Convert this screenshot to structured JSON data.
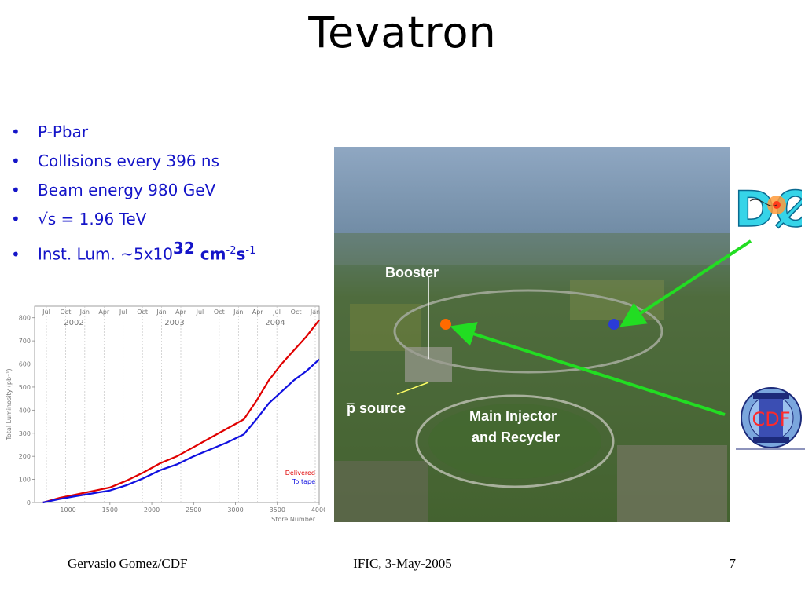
{
  "title": "Tevatron",
  "bullets": [
    {
      "text": "P-Pbar"
    },
    {
      "text": "Collisions every 396 ns"
    },
    {
      "text": "Beam energy 980 GeV"
    },
    {
      "text": "√s = 1.96 TeV"
    },
    {
      "prefix": "Inst. Lum. ~5x10",
      "exp1": "32",
      "mid": " cm",
      "exp2": "-2",
      "s": "s",
      "exp3": "-1"
    }
  ],
  "bullet_marker": "•",
  "photo_labels": {
    "booster": "Booster",
    "pbar_source": "p source",
    "pbar_bar": "_",
    "main_injector_line1": "Main Injector",
    "main_injector_line2": "and Recycler"
  },
  "logos": {
    "d0": "DØ",
    "cdf": "CDF"
  },
  "footer": {
    "left": "Gervasio Gomez/CDF",
    "center": "IFIC, 3-May-2005",
    "right": "7"
  },
  "colors": {
    "bullet_text": "#1414c8",
    "delivered": "#e00000",
    "to_tape": "#1010e0",
    "arrow": "#22dd22"
  },
  "chart_data": {
    "type": "line",
    "ylabel": "Total Luminosity (pb⁻¹)",
    "xlabel": "Store Number",
    "xlim": [
      600,
      4000
    ],
    "ylim": [
      0,
      850
    ],
    "x_ticks": [
      1000,
      1500,
      2000,
      2500,
      3000,
      3500,
      4000
    ],
    "y_ticks": [
      0,
      100,
      200,
      300,
      400,
      500,
      600,
      700,
      800
    ],
    "top_month_labels": [
      "Jul",
      "Oct",
      "Jan",
      "Apr",
      "Jul",
      "Oct",
      "Jan",
      "Apr",
      "Jul",
      "Oct",
      "Jan",
      "Apr",
      "Jul",
      "Oct",
      "Jan"
    ],
    "year_labels": [
      "2002",
      "2003",
      "2004"
    ],
    "legend": [
      "Delivered",
      "To tape"
    ],
    "series": [
      {
        "name": "Delivered",
        "x": [
          700,
          900,
          1100,
          1300,
          1500,
          1700,
          1900,
          2100,
          2300,
          2500,
          2700,
          2900,
          3100,
          3250,
          3400,
          3550,
          3700,
          3850,
          4000
        ],
        "values": [
          0,
          20,
          35,
          50,
          65,
          95,
          130,
          170,
          200,
          240,
          280,
          320,
          360,
          440,
          530,
          600,
          660,
          720,
          790
        ]
      },
      {
        "name": "To tape",
        "x": [
          700,
          900,
          1100,
          1300,
          1500,
          1700,
          1900,
          2100,
          2300,
          2500,
          2700,
          2900,
          3100,
          3250,
          3400,
          3550,
          3700,
          3850,
          4000
        ],
        "values": [
          0,
          15,
          28,
          40,
          52,
          75,
          105,
          140,
          165,
          200,
          230,
          260,
          295,
          360,
          430,
          480,
          530,
          570,
          620
        ]
      }
    ]
  }
}
